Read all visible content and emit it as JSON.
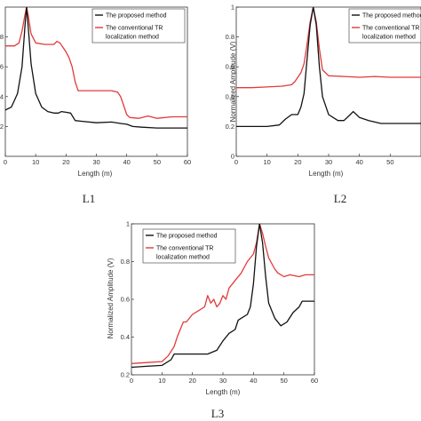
{
  "colors": {
    "proposed": "#111111",
    "conventional": "#e23a3a",
    "axis": "#333333"
  },
  "chart_data": [
    {
      "type": "line",
      "panel_label": "L1",
      "xlabel": "Length (m)",
      "ylabel": "",
      "xlim": [
        0,
        60
      ],
      "ylim": [
        0,
        1
      ],
      "xticks": [
        "0",
        "10",
        "20",
        "30",
        "40",
        "50",
        "60"
      ],
      "yticks": [
        ".2",
        ".4",
        ".6",
        ".8"
      ],
      "yticks_values": [
        0.2,
        0.4,
        0.6,
        0.8
      ],
      "xticks_values": [
        0,
        10,
        20,
        30,
        40,
        50,
        60
      ],
      "legend": [
        "The proposed method",
        "The conventional TR",
        "localization method"
      ],
      "series": [
        {
          "name": "The proposed method",
          "color": "#111111",
          "x": [
            0,
            2,
            4,
            5.5,
            6.5,
            7,
            7.5,
            8.5,
            10,
            12,
            14,
            16,
            17.5,
            18.5,
            20,
            21.5,
            23,
            25,
            30,
            35,
            38,
            40,
            42,
            45,
            50,
            55,
            60
          ],
          "y": [
            0.31,
            0.33,
            0.42,
            0.6,
            0.88,
            1.0,
            0.88,
            0.62,
            0.42,
            0.33,
            0.3,
            0.29,
            0.29,
            0.3,
            0.295,
            0.29,
            0.24,
            0.235,
            0.225,
            0.23,
            0.22,
            0.215,
            0.2,
            0.195,
            0.19,
            0.19,
            0.19
          ]
        },
        {
          "name": "The conventional TR localization method",
          "color": "#e23a3a",
          "x": [
            0,
            3,
            4.5,
            5.5,
            6.5,
            7,
            7.5,
            8.5,
            10,
            13,
            16,
            17,
            18,
            19,
            20,
            21,
            22,
            23,
            24,
            30,
            35,
            37,
            38,
            39,
            40,
            41,
            44,
            47,
            50,
            55,
            60
          ],
          "y": [
            0.74,
            0.74,
            0.76,
            0.84,
            0.95,
            1.0,
            0.95,
            0.82,
            0.76,
            0.75,
            0.75,
            0.77,
            0.76,
            0.73,
            0.7,
            0.66,
            0.6,
            0.5,
            0.44,
            0.44,
            0.44,
            0.43,
            0.4,
            0.34,
            0.28,
            0.26,
            0.255,
            0.27,
            0.255,
            0.265,
            0.265
          ]
        }
      ]
    },
    {
      "type": "line",
      "panel_label": "L2",
      "xlabel": "Length (m)",
      "ylabel": "Normalized Amplitude (V)",
      "xlim": [
        0,
        60
      ],
      "ylim": [
        0,
        1
      ],
      "xticks": [
        "0",
        "10",
        "20",
        "30",
        "40",
        "50"
      ],
      "yticks": [
        "0",
        "0.2",
        "0.4",
        "0.6",
        "0.8",
        "1"
      ],
      "yticks_values": [
        0,
        0.2,
        0.4,
        0.6,
        0.8,
        1
      ],
      "xticks_values": [
        0,
        10,
        20,
        30,
        40,
        50
      ],
      "legend": [
        "The proposed method",
        "The conventional TR",
        "localization method"
      ],
      "series": [
        {
          "name": "The proposed method",
          "color": "#111111",
          "x": [
            0,
            5,
            10,
            14,
            16,
            18,
            20,
            21,
            22,
            23,
            24,
            25,
            26,
            27,
            28,
            30,
            33,
            35,
            37,
            38,
            40,
            43,
            47,
            55,
            60
          ],
          "y": [
            0.2,
            0.2,
            0.2,
            0.21,
            0.25,
            0.28,
            0.28,
            0.33,
            0.42,
            0.65,
            0.88,
            1.0,
            0.88,
            0.6,
            0.4,
            0.28,
            0.24,
            0.24,
            0.28,
            0.3,
            0.26,
            0.24,
            0.22,
            0.22,
            0.22
          ]
        },
        {
          "name": "The conventional TR localization method",
          "color": "#e23a3a",
          "x": [
            0,
            5,
            10,
            15,
            18,
            19,
            20,
            21,
            22,
            23,
            24,
            25,
            26,
            27,
            28,
            30,
            35,
            40,
            45,
            50,
            55,
            60
          ],
          "y": [
            0.46,
            0.46,
            0.465,
            0.47,
            0.48,
            0.5,
            0.53,
            0.56,
            0.62,
            0.75,
            0.9,
            1.0,
            0.9,
            0.72,
            0.58,
            0.54,
            0.535,
            0.53,
            0.535,
            0.53,
            0.53,
            0.53
          ]
        }
      ]
    },
    {
      "type": "line",
      "panel_label": "L3",
      "xlabel": "Length (m)",
      "ylabel": "Normalized Amplitude (V)",
      "xlim": [
        0,
        60
      ],
      "ylim": [
        0.2,
        1
      ],
      "xticks": [
        "0",
        "10",
        "20",
        "30",
        "40",
        "50",
        "60"
      ],
      "yticks": [
        "0.2",
        "0.4",
        "0.6",
        "0.8",
        "1"
      ],
      "yticks_values": [
        0.2,
        0.4,
        0.6,
        0.8,
        1
      ],
      "xticks_values": [
        0,
        10,
        20,
        30,
        40,
        50,
        60
      ],
      "legend": [
        "The proposed method",
        "The conventional TR",
        "localization method"
      ],
      "series": [
        {
          "name": "The proposed method",
          "color": "#111111",
          "x": [
            0,
            5,
            10,
            13,
            14,
            16,
            20,
            25,
            28,
            30,
            32,
            34,
            35,
            36,
            38,
            39,
            40,
            41,
            42,
            43,
            44,
            45,
            47,
            49,
            51,
            53,
            55,
            56,
            57,
            60
          ],
          "y": [
            0.24,
            0.245,
            0.25,
            0.28,
            0.31,
            0.31,
            0.31,
            0.31,
            0.33,
            0.38,
            0.42,
            0.44,
            0.49,
            0.5,
            0.52,
            0.56,
            0.68,
            0.88,
            1.0,
            0.9,
            0.72,
            0.58,
            0.5,
            0.46,
            0.48,
            0.53,
            0.56,
            0.59,
            0.59,
            0.59
          ]
        },
        {
          "name": "The conventional TR localization method",
          "color": "#e23a3a",
          "x": [
            0,
            5,
            10,
            12,
            14,
            15,
            17,
            18,
            20,
            22,
            24,
            25,
            26,
            27,
            28,
            29,
            30,
            31,
            32,
            34,
            36,
            38,
            40,
            41,
            42,
            43,
            44,
            45,
            47,
            48,
            50,
            52,
            55,
            57,
            60
          ],
          "y": [
            0.26,
            0.265,
            0.27,
            0.3,
            0.35,
            0.4,
            0.48,
            0.48,
            0.52,
            0.54,
            0.56,
            0.62,
            0.58,
            0.6,
            0.56,
            0.58,
            0.62,
            0.6,
            0.66,
            0.7,
            0.74,
            0.8,
            0.84,
            0.9,
            1.0,
            0.95,
            0.88,
            0.82,
            0.76,
            0.74,
            0.72,
            0.73,
            0.72,
            0.73,
            0.73
          ]
        }
      ]
    }
  ]
}
